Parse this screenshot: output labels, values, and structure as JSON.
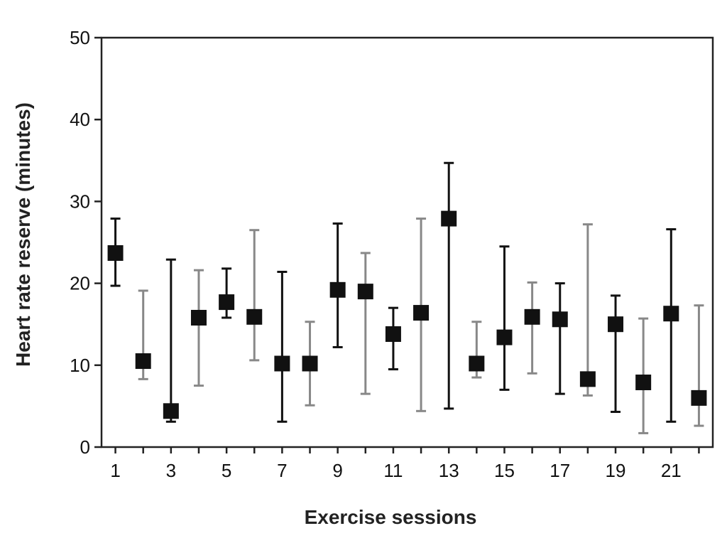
{
  "chart_data": {
    "type": "scatter",
    "title": "",
    "xlabel": "Exercise sessions",
    "ylabel": "Heart rate reserve (minutes)",
    "xlim": [
      0.5,
      22.5
    ],
    "ylim": [
      0,
      50
    ],
    "x_tick_labels": [
      "1",
      "3",
      "5",
      "7",
      "9",
      "11",
      "13",
      "15",
      "17",
      "19",
      "21"
    ],
    "y_tick_labels": [
      "0",
      "10",
      "20",
      "30",
      "40",
      "50"
    ],
    "grid": false,
    "legend": "none",
    "marker": "square",
    "colors": {
      "marker": "#111111",
      "errorbar_odd": "#111111",
      "errorbar_even": "#888888",
      "axis": "#222222"
    },
    "series": [
      {
        "x": [
          1,
          2,
          3,
          4,
          5,
          6,
          7,
          8,
          9,
          10,
          11,
          12,
          13,
          14,
          15,
          16,
          17,
          18,
          19,
          20,
          21,
          22
        ],
        "y": [
          23.7,
          10.5,
          4.4,
          15.8,
          17.7,
          15.9,
          10.2,
          10.2,
          19.2,
          19.0,
          13.8,
          16.4,
          27.9,
          10.2,
          13.4,
          15.9,
          15.6,
          8.3,
          15.0,
          7.9,
          16.3,
          6.0
        ],
        "lower": [
          19.7,
          8.3,
          3.1,
          7.5,
          15.8,
          10.6,
          3.1,
          5.1,
          12.2,
          6.5,
          9.5,
          4.4,
          4.7,
          8.5,
          7.0,
          9.0,
          6.5,
          6.3,
          4.3,
          1.7,
          3.1,
          2.6
        ],
        "upper": [
          27.9,
          19.1,
          22.9,
          21.6,
          21.8,
          26.5,
          21.4,
          15.3,
          27.3,
          23.7,
          17.0,
          27.9,
          34.7,
          15.3,
          24.5,
          20.1,
          20.0,
          27.2,
          18.5,
          15.7,
          26.6,
          17.3
        ]
      }
    ]
  }
}
